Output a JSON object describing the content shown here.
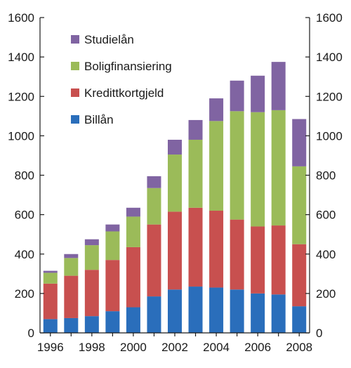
{
  "chart_data": {
    "type": "bar",
    "stacked": true,
    "title": "",
    "xlabel": "",
    "ylabel": "",
    "ylim": [
      0,
      1600
    ],
    "y_ticks": [
      0,
      200,
      400,
      600,
      800,
      1000,
      1200,
      1400,
      1600
    ],
    "x_tick_labels": [
      "1996",
      "1998",
      "2000",
      "2002",
      "2004",
      "2006",
      "2008"
    ],
    "categories": [
      "1996",
      "1997",
      "1998",
      "1999",
      "2000",
      "2001",
      "2002",
      "2003",
      "2004",
      "2005",
      "2006",
      "2007",
      "2008"
    ],
    "grid": false,
    "legend_position": "top-left",
    "series": [
      {
        "name": "Billån",
        "color": "#2a6ebb",
        "values": [
          70,
          75,
          85,
          110,
          130,
          185,
          220,
          235,
          230,
          220,
          200,
          195,
          135
        ]
      },
      {
        "name": "Kredittkortgjeld",
        "color": "#c8504f",
        "values": [
          180,
          215,
          235,
          260,
          305,
          365,
          395,
          400,
          390,
          355,
          340,
          350,
          315
        ]
      },
      {
        "name": "Boligfinansiering",
        "color": "#9bbb59",
        "values": [
          55,
          90,
          125,
          145,
          155,
          185,
          290,
          345,
          455,
          550,
          580,
          585,
          395
        ]
      },
      {
        "name": "Studielån",
        "color": "#8064a2",
        "values": [
          10,
          20,
          30,
          35,
          45,
          60,
          75,
          100,
          115,
          155,
          185,
          245,
          240
        ]
      }
    ],
    "legend_order": [
      "Studielån",
      "Boligfinansiering",
      "Kredittkortgjeld",
      "Billån"
    ]
  }
}
